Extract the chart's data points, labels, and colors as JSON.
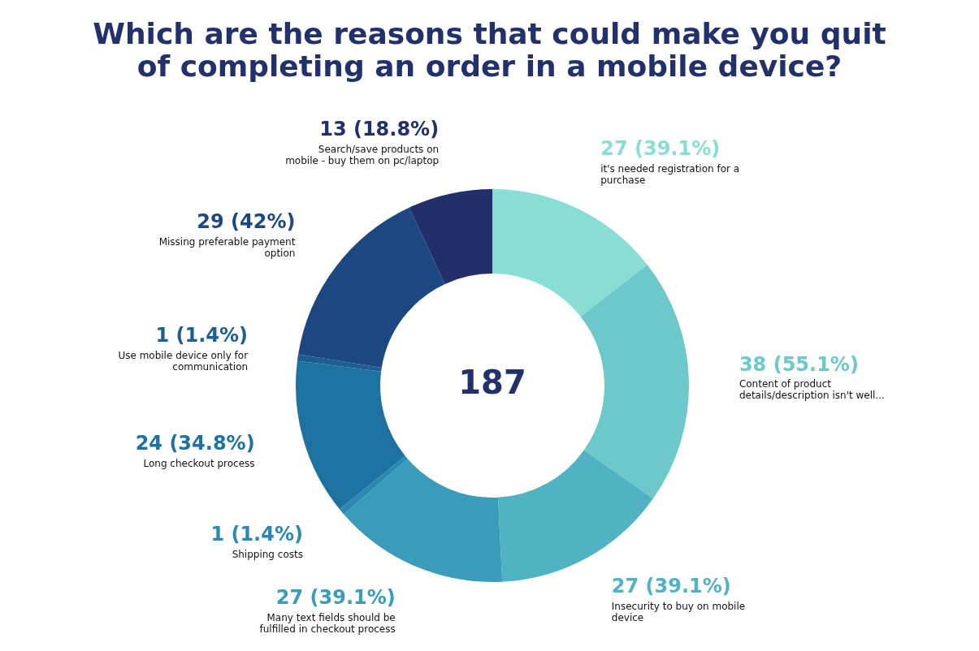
{
  "chart_data": {
    "type": "donut",
    "title": "Which are the reasons that could make you quit of completing an order in a mobile device?",
    "categories": [
      "it's needed registration for a purchase",
      "Content of product details/description isn't well...",
      "Insecurity to buy on mobile device",
      "Many text fields should be fulfilled in checkout process",
      "Shipping costs",
      "Long checkout process",
      "Use mobile device only for communication",
      "Missing preferable payment option",
      "Search/save products on mobile - buy them on pc/laptop"
    ],
    "values": [
      27,
      38,
      27,
      27,
      1,
      24,
      1,
      29,
      13
    ],
    "colors": [
      "#88ddd5",
      "#6cc8c9",
      "#50b2c2",
      "#3a9cb8",
      "#2a88b2",
      "#1e72a0",
      "#1d5f92",
      "#1c4780",
      "#222f6b"
    ],
    "value_labels": [
      "27 (39.1%)",
      "38 (55.1%)",
      "27 (39.1%)",
      "27 (39.1%)",
      "1 (1.4%)",
      "24 (34.8%)",
      "1 (1.4%)",
      "29 (42%)",
      "13 (18.8%)"
    ],
    "annotations": [
      "187"
    ],
    "legend": false
  }
}
